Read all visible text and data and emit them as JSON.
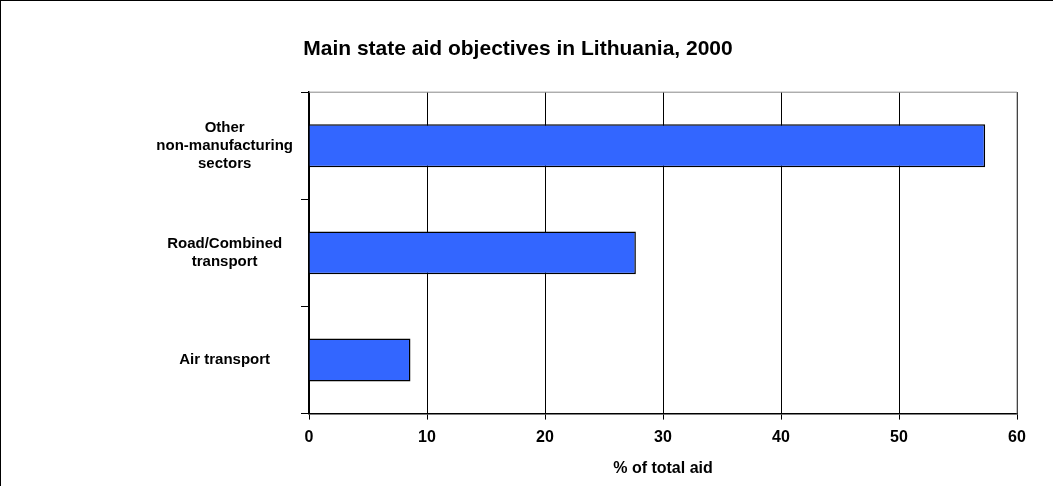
{
  "chart_data": {
    "type": "bar",
    "orientation": "horizontal",
    "title": "Main state aid objectives in Lithuania, 2000",
    "xlabel": "% of total aid",
    "categories": [
      "Other non-manufacturing sectors",
      "Road/Combined transport",
      "Air transport"
    ],
    "values": [
      57.3,
      27.7,
      8.6
    ],
    "color": "#3366ff",
    "xlim": [
      0,
      60
    ],
    "xticks": [
      0,
      10,
      20,
      30,
      40,
      50,
      60
    ],
    "grid": "x",
    "legend": false
  }
}
